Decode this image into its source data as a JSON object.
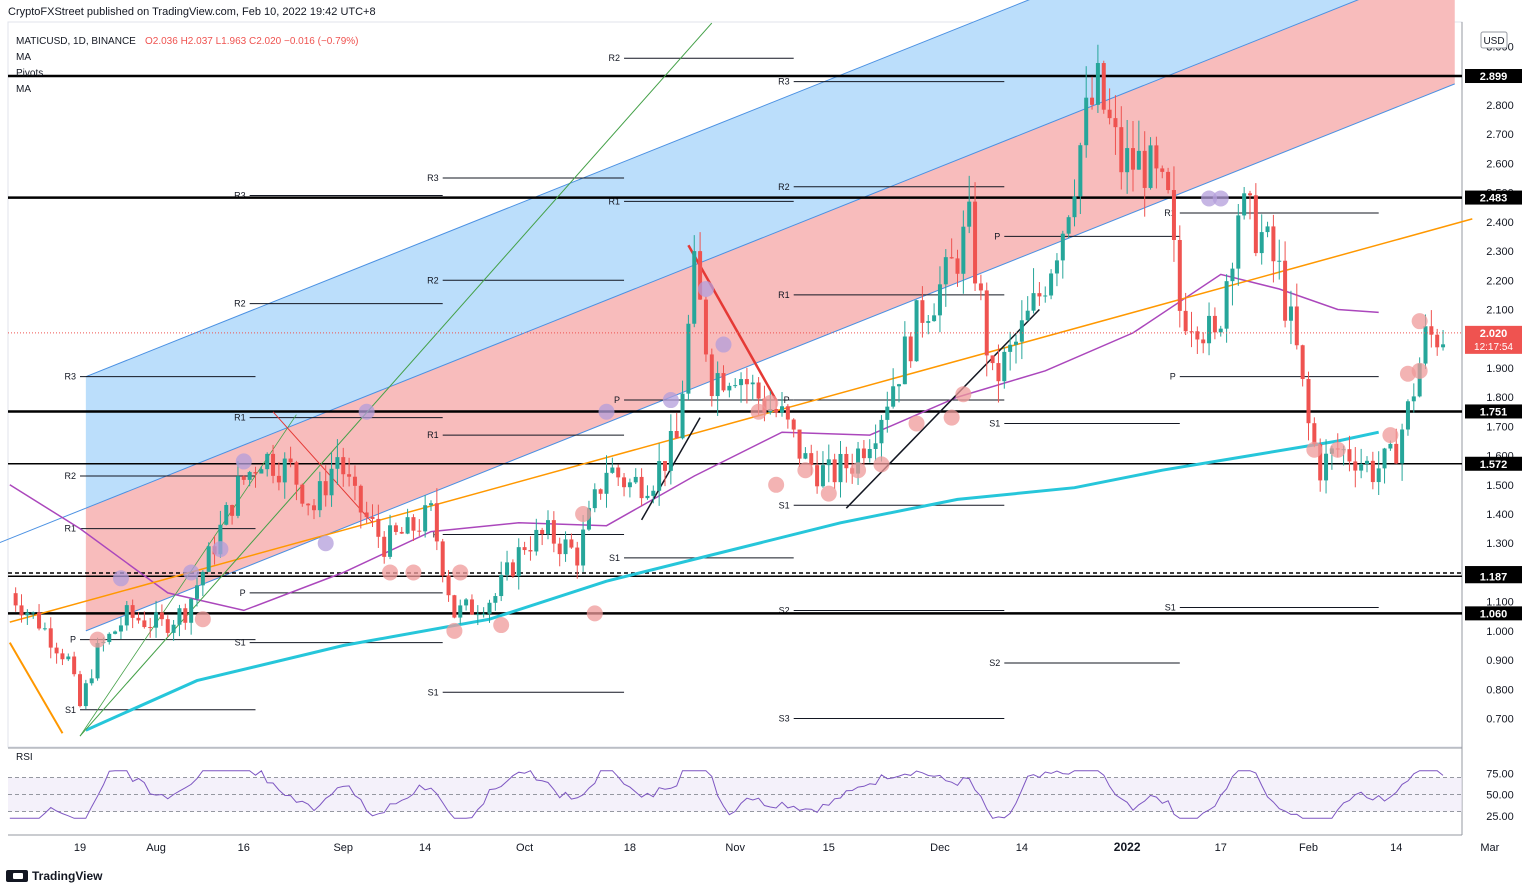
{
  "header": {
    "published": "CryptoFXStreet published on TradingView.com, Feb 10, 2022 19:42 UTC+8"
  },
  "footer": {
    "brand": "TradingView"
  },
  "chart_data": {
    "type": "candlestick",
    "symbol": "MATICUSD, 1D, BINANCE",
    "ohlc_label": {
      "o": "O2.036",
      "h": "H2.037",
      "l": "L1.963",
      "c": "C2.020",
      "chg": "−0.016 (−0.79%)"
    },
    "indicator_labels": [
      "MA",
      "Pivots",
      "MA"
    ],
    "currency": "USD",
    "y_axis": {
      "min": 0.6,
      "max": 3.0,
      "ticks": [
        3.0,
        2.9,
        2.8,
        2.7,
        2.6,
        2.5,
        2.4,
        2.3,
        2.2,
        2.1,
        2.0,
        1.9,
        1.8,
        1.7,
        1.6,
        1.5,
        1.4,
        1.3,
        1.2,
        1.1,
        1.0,
        0.9,
        0.8,
        0.7
      ],
      "tick_labels": [
        "3.000",
        "2.900",
        "2.800",
        "2.700",
        "2.600",
        "2.500",
        "2.400",
        "2.300",
        "2.200",
        "2.100",
        "2.000",
        "1.900",
        "1.800",
        "1.700",
        "1.600",
        "1.500",
        "1.400",
        "1.300",
        "1.200",
        "1.100",
        "1.000",
        "0.900",
        "0.800",
        "0.700"
      ]
    },
    "x_axis": {
      "labels": [
        "19",
        "Aug",
        "16",
        "Sep",
        "14",
        "Oct",
        "18",
        "Nov",
        "15",
        "Dec",
        "14",
        "2022",
        "17",
        "Feb",
        "14",
        "Mar"
      ],
      "label_days": [
        0,
        13,
        28,
        45,
        59,
        76,
        94,
        112,
        128,
        147,
        161,
        179,
        195,
        210,
        225,
        241
      ]
    },
    "horizontal_levels": [
      {
        "value": 2.899,
        "label": "2.899",
        "style": "solid-thick"
      },
      {
        "value": 2.483,
        "label": "2.483",
        "style": "solid-thick"
      },
      {
        "value": 1.751,
        "label": "1.751",
        "style": "solid-thick"
      },
      {
        "value": 1.572,
        "label": "1.572",
        "style": "solid"
      },
      {
        "value": 1.198,
        "label": "1.198",
        "style": "dashed"
      },
      {
        "value": 1.187,
        "label": "1.187",
        "style": "solid"
      },
      {
        "value": 1.06,
        "label": "1.060",
        "style": "solid-thick"
      }
    ],
    "last_price": {
      "value": 2.02,
      "label": "2.020",
      "countdown": "12:17:54"
    },
    "pivot_labels": [
      "R3",
      "R2",
      "R1",
      "P",
      "S1",
      "S2",
      "S3"
    ],
    "pivots": [
      {
        "d0": 0,
        "d1": 30,
        "R3": 1.87,
        "R2": 1.53,
        "R1": 1.35,
        "P": 0.97,
        "S1": 0.73
      },
      {
        "d0": 29,
        "d1": 62,
        "R3": 2.49,
        "R2": 2.12,
        "R1": 1.73,
        "P": 1.13,
        "S1": 0.96
      },
      {
        "d0": 62,
        "d1": 93,
        "R3": 2.55,
        "R2": 2.2,
        "R1": 1.67,
        "P": 1.33,
        "S1": 0.79
      },
      {
        "d0": 93,
        "d1": 122,
        "R2": 2.96,
        "R1": 2.47,
        "P": 1.79,
        "S1": 1.25
      },
      {
        "d0": 122,
        "d1": 158,
        "R3": 2.88,
        "R2": 2.52,
        "R1": 2.15,
        "P": 1.79,
        "S1": 1.43,
        "S2": 1.07,
        "S3": 0.7
      },
      {
        "d0": 158,
        "d1": 188,
        "P": 2.35,
        "S1": 1.71,
        "S2": 0.89
      },
      {
        "d0": 188,
        "d1": 222,
        "R1": 2.43,
        "P": 1.87,
        "S1": 1.08
      }
    ],
    "rsi": {
      "label": "RSI",
      "ticks": [
        75,
        50,
        25
      ],
      "tick_labels": [
        "75.00",
        "50.00",
        "25.00"
      ],
      "overbought": 70,
      "oversold": 30
    },
    "colors": {
      "up": "#26a69a",
      "down": "#ef5350",
      "channel_blue": "#bbdefb",
      "channel_red": "#f8bcbc",
      "ma_long": "#26c6da",
      "ma_short": "#ab47bc",
      "orange_line": "#ff9800",
      "rsi": "#7e57c2",
      "price_tag": "#ef5350"
    }
  }
}
